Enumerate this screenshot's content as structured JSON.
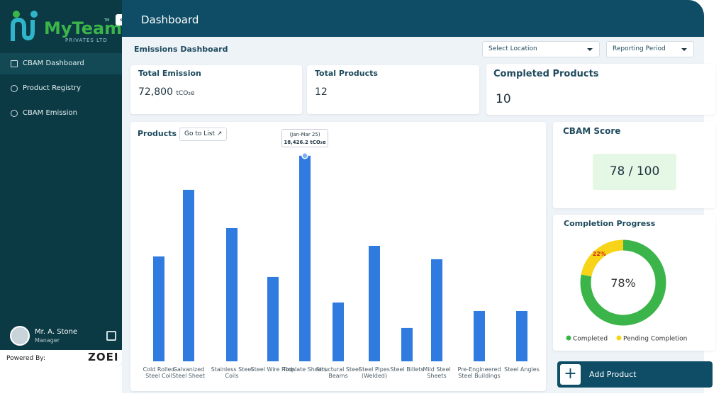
{
  "logo": {
    "name": "MyTeam",
    "tm": "TM",
    "tagline": "PRIVATES LTD"
  },
  "sidebar": {
    "nav": [
      "CBAM Dashboard",
      "Product Registry",
      "CBAM Emission"
    ],
    "user": {
      "name": "Mr. A. Stone",
      "role": "Manager"
    },
    "powered_by": "Powered By:",
    "powered_logo": "ZOEI"
  },
  "header": {
    "title": "Dashboard"
  },
  "toolbar": {
    "title": "Emissions Dashboard",
    "location": "Select Location",
    "period": "Reporting Period"
  },
  "kpis": [
    {
      "label": "Total Emission",
      "value": "72,800",
      "unit": "tCO₂e"
    },
    {
      "label": "Total Products",
      "value": "12"
    },
    {
      "label": "Completed Products",
      "value": "10"
    }
  ],
  "score": {
    "title": "CBAM Score",
    "value": "78 / 100"
  },
  "add_button": "Add Product",
  "products_card": {
    "title": "Products",
    "link": "Go to List"
  },
  "chart_data": [
    {
      "type": "bar",
      "color": "#2f7be0",
      "categories": [
        "Cold Rolled Steel Coil",
        "Galvanized Steel Sheet",
        "Stainless Steel Coils",
        "Steel Wire Rods",
        "Tinplate Sheets",
        "Structural Steel Beams",
        "Steel Pipes (Welded)",
        "Steel Billets",
        "Mild Steel Sheets",
        "Pre-Engineered Steel Buildings",
        "Steel Angles"
      ],
      "values": [
        9400,
        15370,
        11940,
        7560,
        18426.2,
        5270,
        10350,
        2990,
        9150,
        4510,
        4510
      ],
      "value_labels": [
        null,
        null,
        null,
        null,
        "18,426.2 tCO₂e",
        null,
        null,
        null,
        null,
        null,
        null
      ],
      "tooltip_period": "(Jan-Mar 25)",
      "ylim": [
        0,
        20000
      ]
    },
    {
      "type": "donut",
      "title": "Completion Progress",
      "categories": [
        "Completed",
        "Pending Completion"
      ],
      "values": [
        78,
        22
      ],
      "value_labels": [
        "78%",
        "22%"
      ],
      "colors": [
        "#3bb54a",
        "#f7d417"
      ]
    }
  ]
}
